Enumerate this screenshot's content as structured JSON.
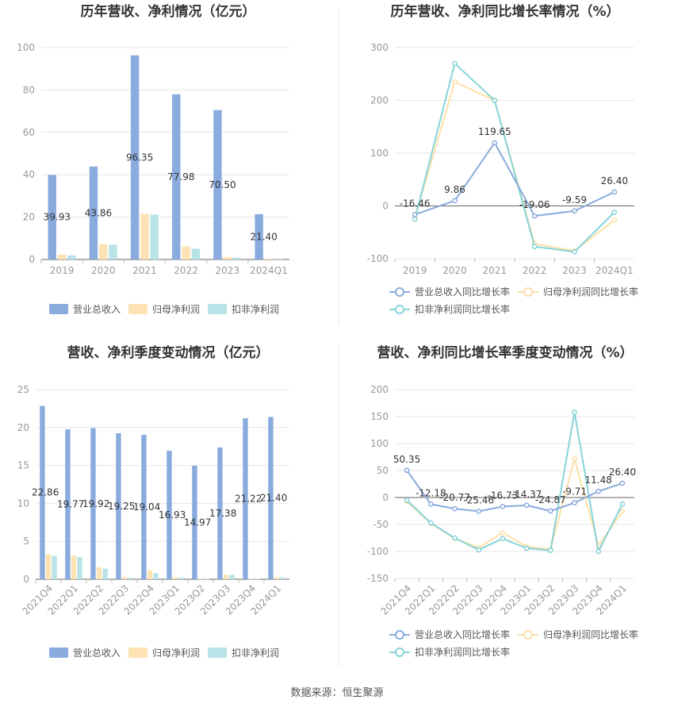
{
  "colors": {
    "revenue": "#8aabdd",
    "parent": "#fde3b4",
    "deducted": "#b8e3e7",
    "revLine": "#8aabdd",
    "parentLine": "#fde0a8",
    "deductLine": "#86d3d8"
  },
  "source": "数据来源：恒生聚源",
  "chart_data": [
    {
      "type": "bar",
      "title": "历年营收、净利情况（亿元）",
      "categories": [
        "2019",
        "2020",
        "2021",
        "2022",
        "2023",
        "2024Q1"
      ],
      "ylim": [
        0,
        100
      ],
      "yticks": [
        0,
        20,
        40,
        60,
        80,
        100
      ],
      "series": [
        {
          "name": "营业总收入",
          "values": [
            39.93,
            43.86,
            96.35,
            77.98,
            70.5,
            21.4
          ],
          "labels": [
            "39.93",
            "43.86",
            "96.35",
            "77.98",
            "70.50",
            "21.40"
          ]
        },
        {
          "name": "归母净利润",
          "values": [
            2.3,
            7.2,
            21.5,
            6.2,
            1.2,
            0.3
          ]
        },
        {
          "name": "扣非净利润",
          "values": [
            1.9,
            7.0,
            21.2,
            5.1,
            0.9,
            0.3
          ]
        }
      ],
      "legend": "bottom"
    },
    {
      "type": "line",
      "title": "历年营收、净利同比增长率情况（%）",
      "categories": [
        "2019",
        "2020",
        "2021",
        "2022",
        "2023",
        "2024Q1"
      ],
      "ylim": [
        -100,
        300
      ],
      "yticks": [
        -100,
        0,
        100,
        200,
        300
      ],
      "series": [
        {
          "name": "营业总收入同比增长率",
          "values": [
            -16.46,
            9.86,
            119.65,
            -19.06,
            -9.59,
            26.4
          ],
          "labels": [
            "-16.46",
            "9.86",
            "119.65",
            "-19.06",
            "-9.59",
            "26.40"
          ]
        },
        {
          "name": "归母净利润同比增长率",
          "values": [
            -22,
            235,
            200,
            -72,
            -85,
            -27
          ]
        },
        {
          "name": "扣非净利润同比增长率",
          "values": [
            -25,
            270,
            200,
            -77,
            -87,
            -12
          ]
        }
      ],
      "legend": "bottom"
    },
    {
      "type": "bar",
      "title": "营收、净利季度变动情况（亿元）",
      "categories": [
        "2021Q4",
        "2022Q1",
        "2022Q2",
        "2022Q3",
        "2022Q4",
        "2023Q1",
        "2023Q2",
        "2023Q3",
        "2023Q4",
        "2024Q1"
      ],
      "ylim": [
        0,
        25
      ],
      "yticks": [
        0,
        5,
        10,
        15,
        20,
        25
      ],
      "series": [
        {
          "name": "营业总收入",
          "values": [
            22.86,
            19.77,
            19.92,
            19.25,
            19.04,
            16.93,
            14.97,
            17.38,
            21.22,
            21.4
          ],
          "labels": [
            "22.86",
            "19.77",
            "19.92",
            "19.25",
            "19.04",
            "16.93",
            "14.97",
            "17.38",
            "21.22",
            "21.40"
          ]
        },
        {
          "name": "归母净利润",
          "values": [
            3.3,
            3.1,
            1.6,
            0.3,
            1.2,
            0.25,
            0.05,
            0.6,
            0.05,
            0.25
          ]
        },
        {
          "name": "扣非净利润",
          "values": [
            3.1,
            2.9,
            1.4,
            0.2,
            0.8,
            0.2,
            0.05,
            0.6,
            0.05,
            0.25
          ]
        }
      ],
      "legend": "bottom"
    },
    {
      "type": "line",
      "title": "营收、净利同比增长率季度变动情况（%）",
      "categories": [
        "2021Q4",
        "2022Q1",
        "2022Q2",
        "2022Q3",
        "2022Q4",
        "2023Q1",
        "2023Q2",
        "2023Q3",
        "2023Q4",
        "2024Q1"
      ],
      "ylim": [
        -150,
        200
      ],
      "yticks": [
        -150,
        -100,
        -50,
        0,
        50,
        100,
        150,
        200
      ],
      "series": [
        {
          "name": "营业总收入同比增长率",
          "values": [
            50.35,
            -12.18,
            -20.77,
            -25.46,
            -16.73,
            -14.37,
            -24.87,
            -9.71,
            11.48,
            26.4
          ],
          "labels": [
            "50.35",
            "-12.18",
            "-20.77",
            "-25.46",
            "-16.73",
            "-14.37",
            "-24.87",
            "-9.71",
            "11.48",
            "26.40"
          ]
        },
        {
          "name": "归母净利润同比增长率",
          "values": [
            -7,
            -48,
            -76,
            -93,
            -65,
            -91,
            -96,
            72,
            -89,
            -26
          ]
        },
        {
          "name": "扣非净利润同比增长率",
          "values": [
            -5,
            -47,
            -75,
            -97,
            -76,
            -94,
            -98,
            158,
            -100,
            -12
          ]
        }
      ],
      "legend": "bottom"
    }
  ]
}
